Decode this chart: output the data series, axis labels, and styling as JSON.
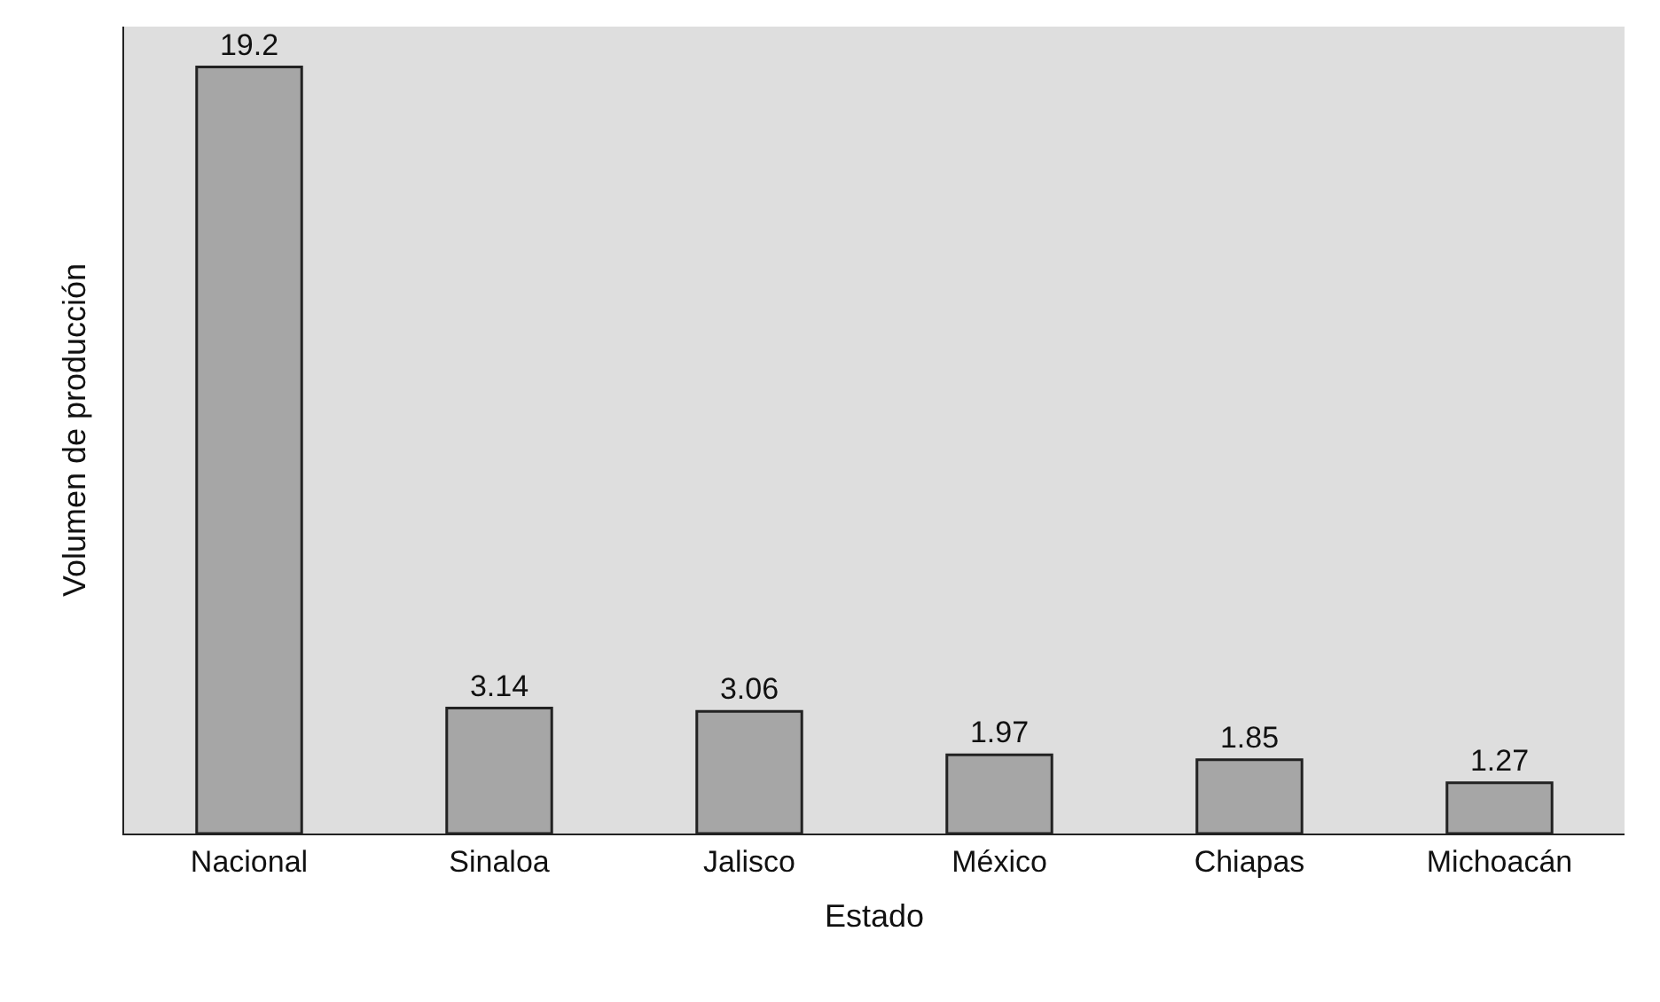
{
  "chart_data": {
    "type": "bar",
    "xlabel": "Estado",
    "ylabel": "Volumen de producción",
    "categories": [
      "Nacional",
      "Sinaloa",
      "Jalisco",
      "México",
      "Chiapas",
      "Michoacán"
    ],
    "values": [
      19.2,
      3.14,
      3.06,
      1.97,
      1.85,
      1.27
    ],
    "color": "#a6a6a6",
    "data_labels": true
  }
}
